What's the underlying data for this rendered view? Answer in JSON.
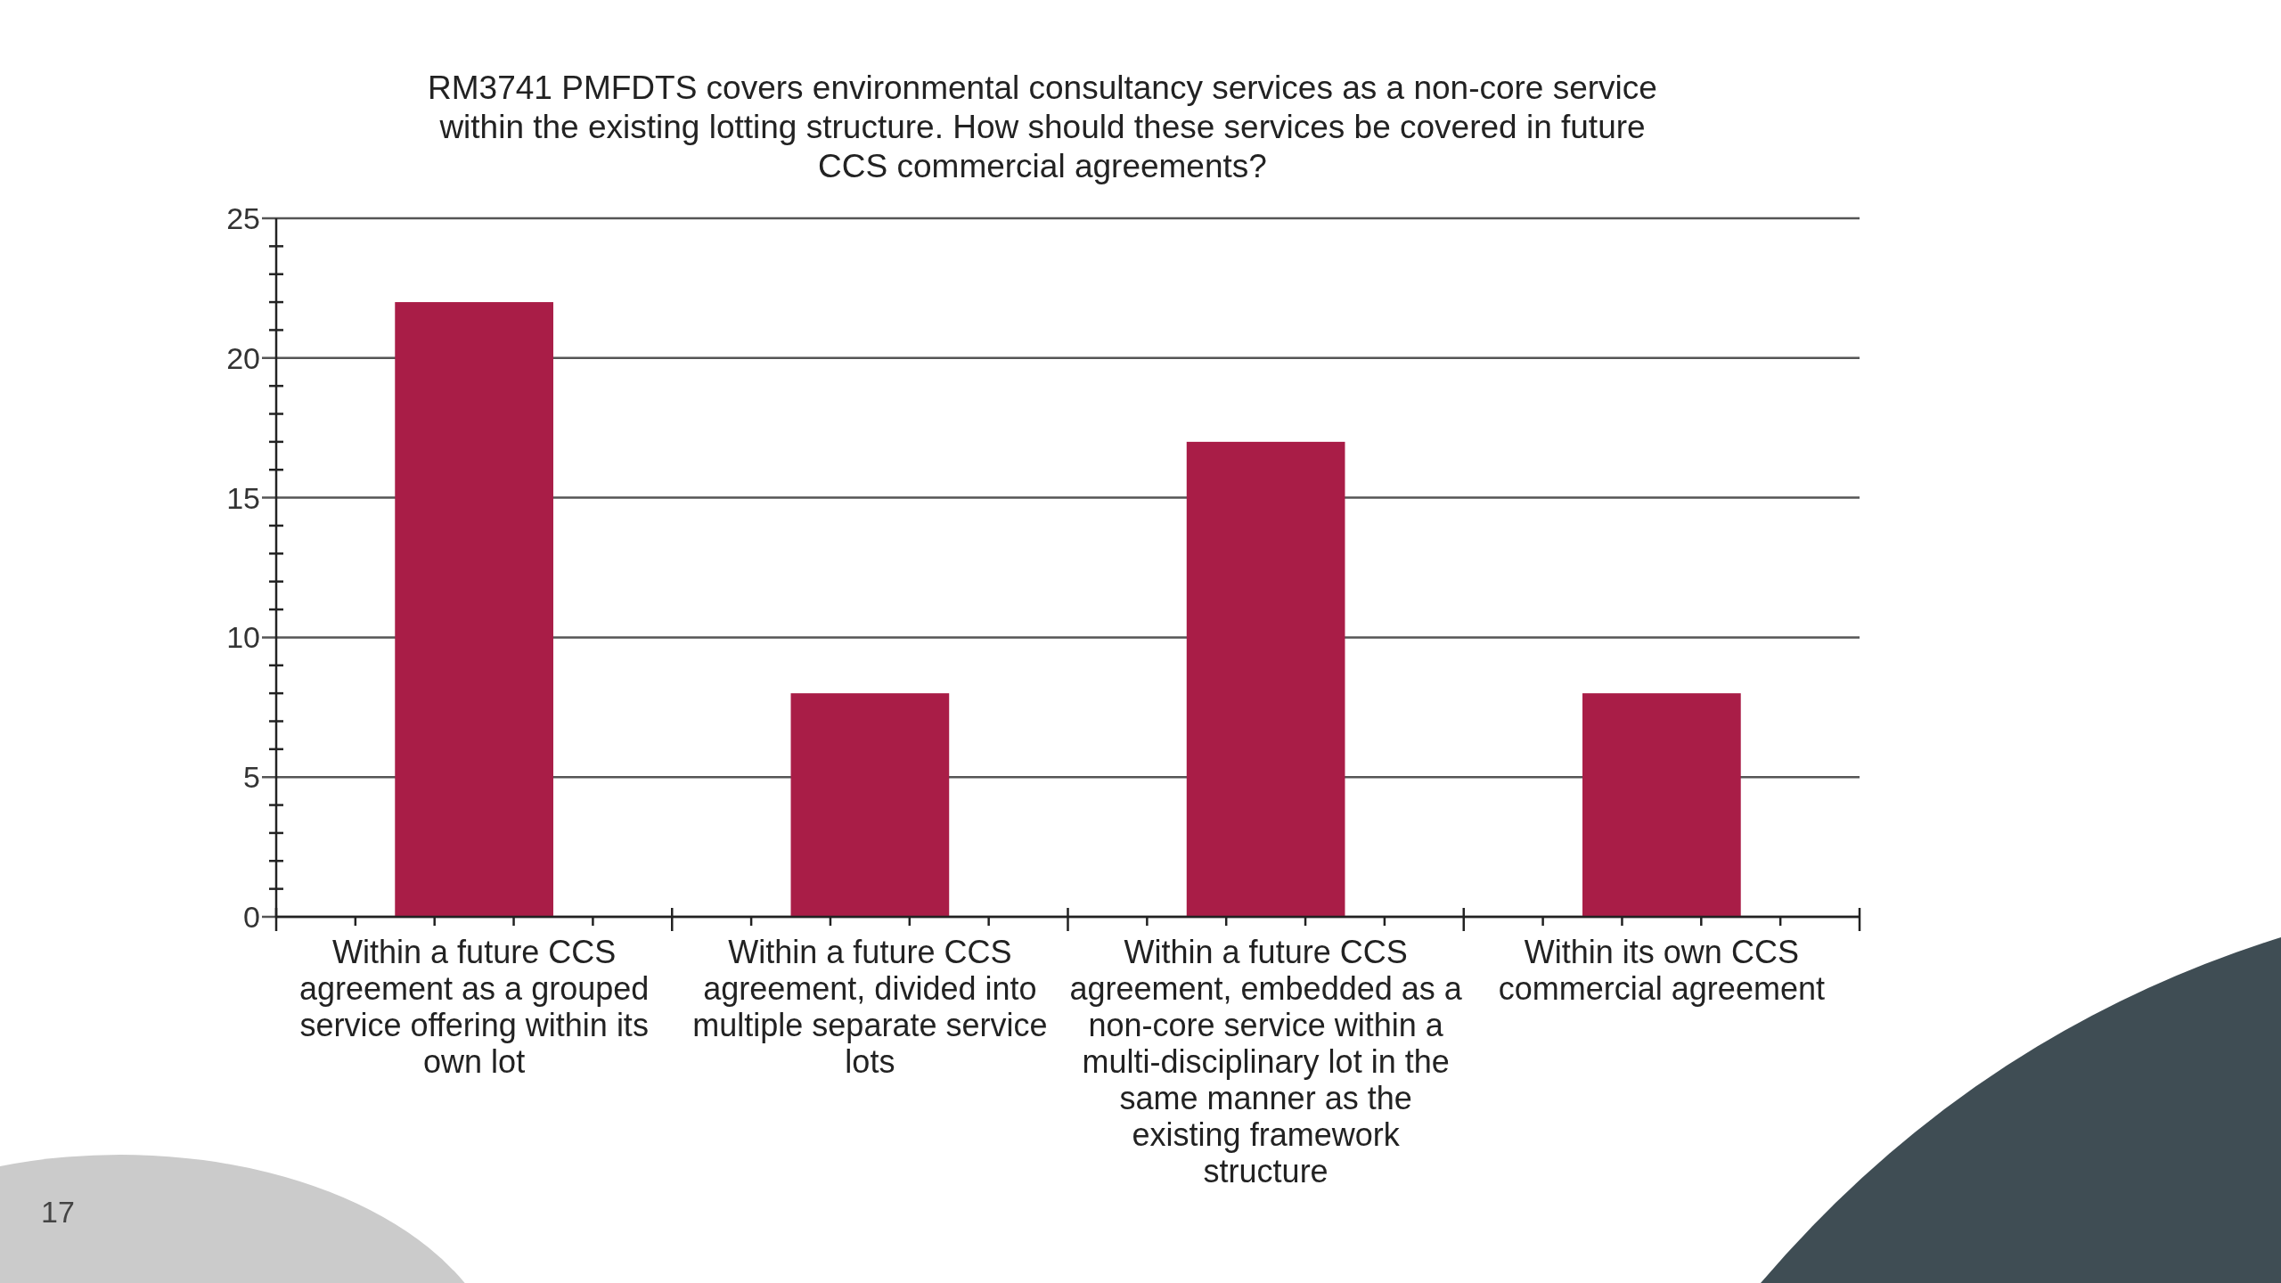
{
  "chart_data": {
    "type": "bar",
    "title": "RM3741 PMFDTS covers environmental consultancy services as a non-core service within the existing lotting structure. How should these services be covered in future CCS commercial agreements?",
    "categories": [
      "Within a future CCS agreement as a grouped service offering within its own lot",
      "Within a future CCS agreement, divided into multiple separate service lots",
      "Within a future CCS agreement, embedded as a non-core service within a multi-disciplinary lot in the same manner as the existing framework structure",
      "Within its own CCS commercial agreement"
    ],
    "values": [
      22,
      8,
      17,
      8
    ],
    "color": "#a91d47",
    "ylim": [
      0,
      25
    ],
    "yticks": [
      0,
      {
        "value": 1,
        "label": null
      },
      {
        "value": 2,
        "label": null
      },
      {
        "value": 3,
        "label": null
      },
      {
        "value": 4,
        "label": null
      },
      5,
      {
        "value": 6,
        "label": null
      },
      {
        "value": 7,
        "label": null
      },
      {
        "value": 8,
        "label": null
      },
      {
        "value": 9,
        "label": null
      },
      10,
      {
        "value": 11,
        "label": null
      },
      {
        "value": 12,
        "label": null
      },
      {
        "value": 13,
        "label": null
      },
      {
        "value": 14,
        "label": null
      },
      15,
      {
        "value": 16,
        "label": null
      },
      {
        "value": 17,
        "label": null
      },
      {
        "value": 18,
        "label": null
      },
      {
        "value": 19,
        "label": null
      },
      20,
      {
        "value": 21,
        "label": null
      },
      {
        "value": 22,
        "label": null
      },
      {
        "value": 23,
        "label": null
      },
      {
        "value": 24,
        "label": null
      },
      25
    ],
    "grid": "y",
    "annotations": [
      "17"
    ]
  }
}
